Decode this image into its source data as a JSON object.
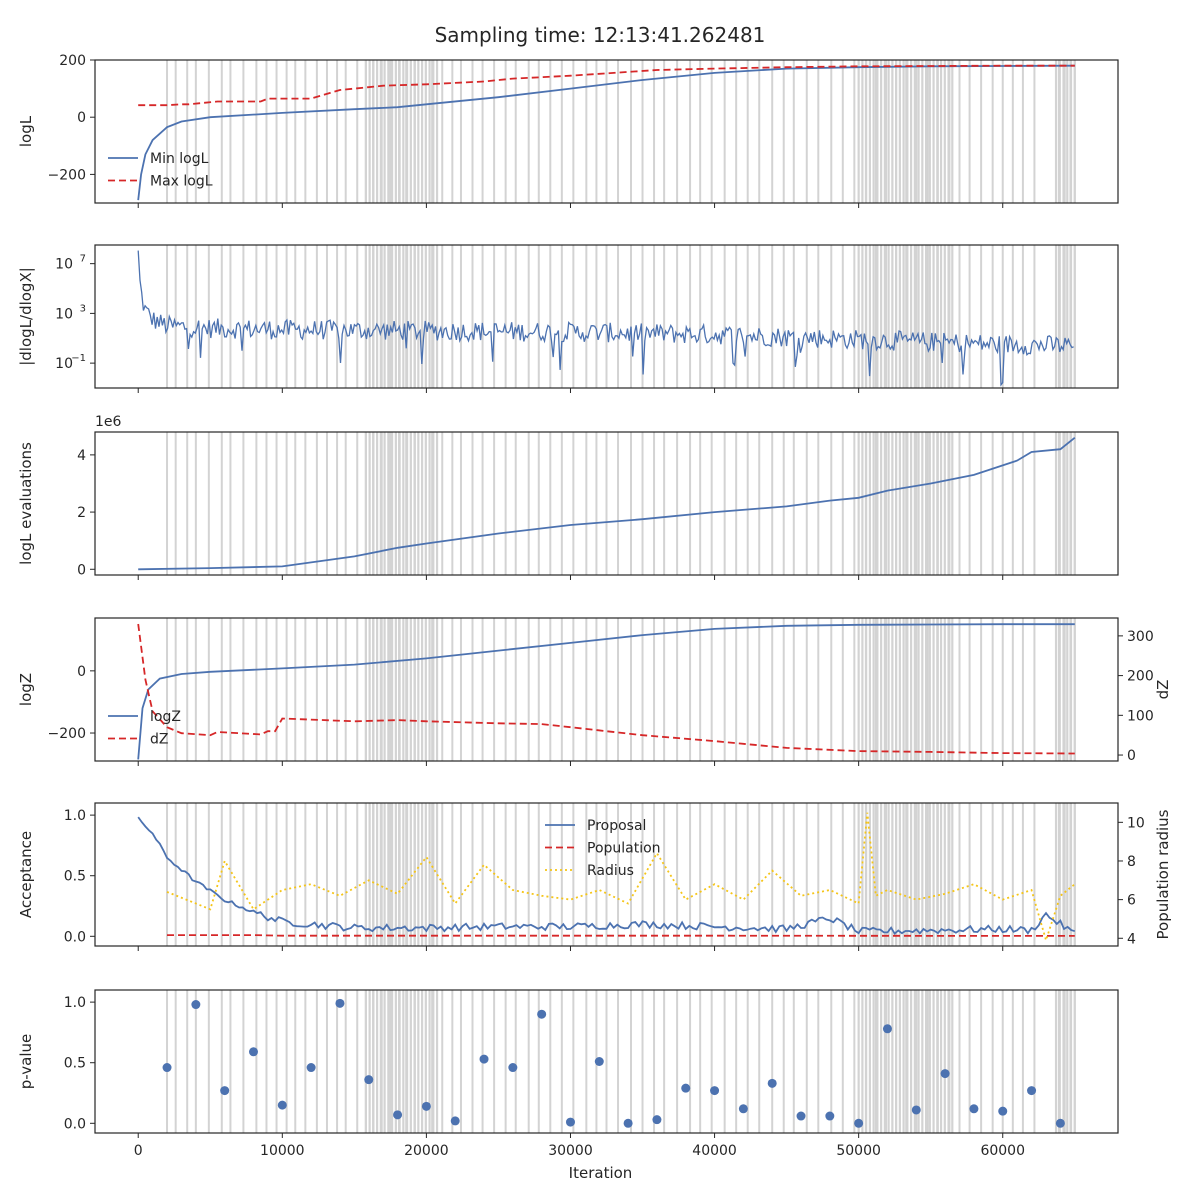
{
  "title": "Sampling time: 12:13:41.262481",
  "colors": {
    "blue": "#4c72b0",
    "red": "#d62728",
    "gold": "#f5c518",
    "band": "#d3d3d3"
  },
  "chart_data": [
    {
      "type": "line",
      "ylabel": "logL",
      "ylim": [
        -300,
        200
      ],
      "yticks": [
        {
          "v": 200,
          "t": "200"
        },
        {
          "v": 0,
          "t": "0"
        },
        {
          "v": -200,
          "t": "−200"
        }
      ],
      "legend_placement": "lower-left",
      "series": [
        {
          "name": "Min logL",
          "style": "solid",
          "color": "blue",
          "x": [
            0,
            200,
            500,
            1000,
            2000,
            3000,
            5000,
            10000,
            15000,
            18000,
            20000,
            25000,
            30000,
            35000,
            40000,
            45000,
            50000,
            55000,
            60000,
            65000
          ],
          "y": [
            -290,
            -200,
            -130,
            -80,
            -35,
            -15,
            0,
            15,
            28,
            35,
            45,
            70,
            100,
            130,
            155,
            170,
            175,
            178,
            179,
            180
          ]
        },
        {
          "name": "Max logL",
          "style": "dashed",
          "color": "red",
          "x": [
            0,
            2000,
            3000,
            3500,
            5500,
            8500,
            9000,
            12000,
            14000,
            15000,
            17000,
            20000,
            22000,
            24000,
            26000,
            28000,
            30000,
            33000,
            36000,
            40000,
            45000,
            50000,
            55000,
            60000,
            65000
          ],
          "y": [
            42,
            42,
            45,
            45,
            55,
            55,
            65,
            65,
            95,
            100,
            110,
            115,
            120,
            125,
            135,
            140,
            145,
            155,
            165,
            170,
            175,
            178,
            179,
            180,
            180
          ]
        }
      ]
    },
    {
      "type": "line",
      "ylabel": "|dlogL/dlogX|",
      "yscale": "log",
      "ylim": [
        -3.0,
        8.5
      ],
      "yticks": [
        {
          "v": 7,
          "t": "10",
          "e": "7"
        },
        {
          "v": 3,
          "t": "10",
          "e": "3"
        },
        {
          "v": -1,
          "t": "10",
          "e": "−1"
        }
      ],
      "series": [
        {
          "name": "",
          "style": "noisy",
          "color": "blue",
          "x": [
            0,
            50,
            150,
            300,
            500,
            1000,
            2000,
            5000,
            10000,
            20000,
            30000,
            40000,
            45000,
            50000,
            55000,
            60000,
            65000
          ],
          "y": [
            7.8,
            6.5,
            5.0,
            4.0,
            3.2,
            2.5,
            2.0,
            1.8,
            1.7,
            1.6,
            1.5,
            1.3,
            1.1,
            0.9,
            0.7,
            0.5,
            0.4
          ]
        }
      ]
    },
    {
      "type": "line",
      "ylabel": "logL evaluations",
      "offset_label": "1e6",
      "ylim": [
        -0.2,
        4.8
      ],
      "yticks": [
        {
          "v": 4,
          "t": "4"
        },
        {
          "v": 2,
          "t": "2"
        },
        {
          "v": 0,
          "t": "0"
        }
      ],
      "series": [
        {
          "name": "",
          "style": "solid",
          "color": "blue",
          "x": [
            0,
            5000,
            10000,
            15000,
            18000,
            20000,
            25000,
            30000,
            35000,
            40000,
            45000,
            48000,
            50000,
            52000,
            55000,
            58000,
            61000,
            62000,
            64000,
            65000
          ],
          "y": [
            0.0,
            0.04,
            0.1,
            0.45,
            0.75,
            0.9,
            1.25,
            1.55,
            1.75,
            2.0,
            2.2,
            2.4,
            2.5,
            2.75,
            3.0,
            3.3,
            3.8,
            4.1,
            4.2,
            4.6
          ]
        }
      ]
    },
    {
      "type": "line",
      "ylabel": "logZ",
      "ylabel_right": "dZ",
      "ylim": [
        -290,
        170
      ],
      "ylim_right": [
        -15,
        345
      ],
      "yticks": [
        {
          "v": 0,
          "t": "0"
        },
        {
          "v": -200,
          "t": "−200"
        }
      ],
      "yticks_right": [
        {
          "v": 300,
          "t": "300"
        },
        {
          "v": 200,
          "t": "200"
        },
        {
          "v": 100,
          "t": "100"
        },
        {
          "v": 0,
          "t": "0"
        }
      ],
      "legend_placement": "lower-left",
      "series": [
        {
          "name": "logZ",
          "style": "solid",
          "color": "blue",
          "axis": "left",
          "x": [
            0,
            300,
            700,
            1500,
            3000,
            5000,
            10000,
            15000,
            20000,
            25000,
            30000,
            35000,
            40000,
            45000,
            50000,
            55000,
            60000,
            65000
          ],
          "y": [
            -285,
            -120,
            -60,
            -25,
            -10,
            -3,
            8,
            20,
            40,
            65,
            90,
            115,
            135,
            145,
            148,
            149,
            150,
            150
          ]
        },
        {
          "name": "dZ",
          "style": "dashed",
          "color": "red",
          "axis": "right",
          "x": [
            0,
            500,
            1000,
            2000,
            3000,
            5000,
            5500,
            8500,
            9000,
            9500,
            10000,
            15000,
            18000,
            20000,
            25000,
            28000,
            30000,
            35000,
            40000,
            45000,
            50000,
            55000,
            60000,
            65000
          ],
          "y": [
            330,
            190,
            110,
            70,
            55,
            50,
            58,
            52,
            60,
            60,
            92,
            85,
            88,
            85,
            80,
            78,
            70,
            50,
            35,
            18,
            10,
            8,
            5,
            4
          ]
        }
      ]
    },
    {
      "type": "line",
      "ylabel": "Acceptance",
      "ylabel_right": "Population radius",
      "ylim": [
        -0.08,
        1.1
      ],
      "ylim_right": [
        3.6,
        11.0
      ],
      "yticks": [
        {
          "v": 1.0,
          "t": "1.0"
        },
        {
          "v": 0.5,
          "t": "0.5"
        },
        {
          "v": 0.0,
          "t": "0.0"
        }
      ],
      "yticks_right": [
        {
          "v": 10,
          "t": "10"
        },
        {
          "v": 8,
          "t": "8"
        },
        {
          "v": 6,
          "t": "6"
        },
        {
          "v": 4,
          "t": "4"
        }
      ],
      "legend_placement": "top-center",
      "series": [
        {
          "name": "Proposal",
          "style": "solid",
          "color": "blue",
          "axis": "left",
          "x": [
            0,
            1000,
            2000,
            3000,
            4000,
            6000,
            8000,
            10000,
            15000,
            20000,
            25000,
            30000,
            35000,
            40000,
            45000,
            48000,
            50000,
            55000,
            60000,
            62000,
            63000,
            65000
          ],
          "y": [
            0.97,
            0.85,
            0.65,
            0.55,
            0.45,
            0.3,
            0.2,
            0.12,
            0.07,
            0.07,
            0.08,
            0.08,
            0.1,
            0.08,
            0.06,
            0.15,
            0.04,
            0.05,
            0.06,
            0.05,
            0.18,
            0.02
          ]
        },
        {
          "name": "Population",
          "style": "dashed",
          "color": "red",
          "axis": "left",
          "x": [
            2000,
            8000,
            10000,
            40000,
            50000,
            60000,
            65000
          ],
          "y": [
            0.01,
            0.01,
            0.005,
            0.005,
            0.004,
            0.003,
            0.003
          ]
        },
        {
          "name": "Radius",
          "style": "dotted",
          "color": "gold",
          "axis": "right",
          "x": [
            2000,
            5000,
            6000,
            8000,
            10000,
            12000,
            14000,
            16000,
            18000,
            20000,
            22000,
            24000,
            26000,
            28000,
            30000,
            32000,
            34000,
            36000,
            38000,
            40000,
            42000,
            44000,
            46000,
            48000,
            50000,
            50600,
            51200,
            52000,
            54000,
            56000,
            58000,
            60000,
            62000,
            63000,
            64000,
            65000
          ],
          "y": [
            6.4,
            5.5,
            8.0,
            5.5,
            6.5,
            6.8,
            6.2,
            7.0,
            6.3,
            8.2,
            5.8,
            7.8,
            6.5,
            6.2,
            6.0,
            6.5,
            5.8,
            8.4,
            6.0,
            6.8,
            6.0,
            7.5,
            6.2,
            6.5,
            5.8,
            10.5,
            6.2,
            6.5,
            6.0,
            6.3,
            6.8,
            6.0,
            6.5,
            3.9,
            6.2,
            6.8
          ]
        }
      ]
    },
    {
      "type": "scatter",
      "ylabel": "p-value",
      "xlabel": "Iteration",
      "ylim": [
        -0.08,
        1.1
      ],
      "xlim": [
        -3000,
        68000
      ],
      "yticks": [
        {
          "v": 1.0,
          "t": "1.0"
        },
        {
          "v": 0.5,
          "t": "0.5"
        },
        {
          "v": 0.0,
          "t": "0.0"
        }
      ],
      "xticks": [
        {
          "v": 0,
          "t": "0"
        },
        {
          "v": 10000,
          "t": "10000"
        },
        {
          "v": 20000,
          "t": "20000"
        },
        {
          "v": 30000,
          "t": "30000"
        },
        {
          "v": 40000,
          "t": "40000"
        },
        {
          "v": 50000,
          "t": "50000"
        },
        {
          "v": 60000,
          "t": "60000"
        }
      ],
      "series": [
        {
          "name": "",
          "color": "blue",
          "x": [
            2000,
            4000,
            6000,
            8000,
            10000,
            12000,
            14000,
            16000,
            18000,
            20000,
            22000,
            24000,
            26000,
            28000,
            30000,
            32000,
            34000,
            36000,
            38000,
            40000,
            42000,
            44000,
            46000,
            48000,
            50000,
            52000,
            54000,
            56000,
            58000,
            60000,
            62000,
            64000
          ],
          "y": [
            0.46,
            0.98,
            0.27,
            0.59,
            0.15,
            0.46,
            0.99,
            0.36,
            0.07,
            0.14,
            0.02,
            0.53,
            0.46,
            0.9,
            0.01,
            0.51,
            0.0,
            0.03,
            0.29,
            0.27,
            0.12,
            0.33,
            0.06,
            0.06,
            0.0,
            0.78,
            0.11,
            0.41,
            0.12,
            0.1,
            0.27,
            0.0
          ]
        }
      ]
    }
  ],
  "vertical_bands": {
    "color": "band",
    "x": [
      2000,
      2600,
      3400,
      4000,
      4900,
      5800,
      6400,
      7300,
      8200,
      8900,
      9600,
      10300,
      10900,
      11600,
      12400,
      13100,
      13800,
      14400,
      15200,
      15800,
      16300,
      16900,
      17500,
      18100,
      18600,
      19200,
      19700,
      20400,
      21100,
      21800,
      22400,
      23200,
      23900,
      24700,
      25500,
      26200,
      27100,
      27800,
      28600,
      29400,
      30200,
      31100,
      31800,
      32500,
      33300,
      34200,
      35000,
      35800,
      36500,
      37400,
      38300,
      39000,
      39800,
      40700,
      41500,
      42300,
      43100,
      44000,
      44800,
      45500,
      46400,
      47200,
      48100,
      48900,
      49700,
      50500,
      51200,
      51900,
      52600,
      53300,
      54000,
      54800,
      55500,
      56300,
      57000,
      57700,
      58500,
      59300,
      60000,
      60700,
      61400,
      62200,
      63900,
      64300,
      64700,
      65000
    ],
    "dense_ranges": [
      [
        15800,
        20800
      ],
      [
        50000,
        56500
      ],
      [
        63700,
        65200
      ]
    ]
  }
}
